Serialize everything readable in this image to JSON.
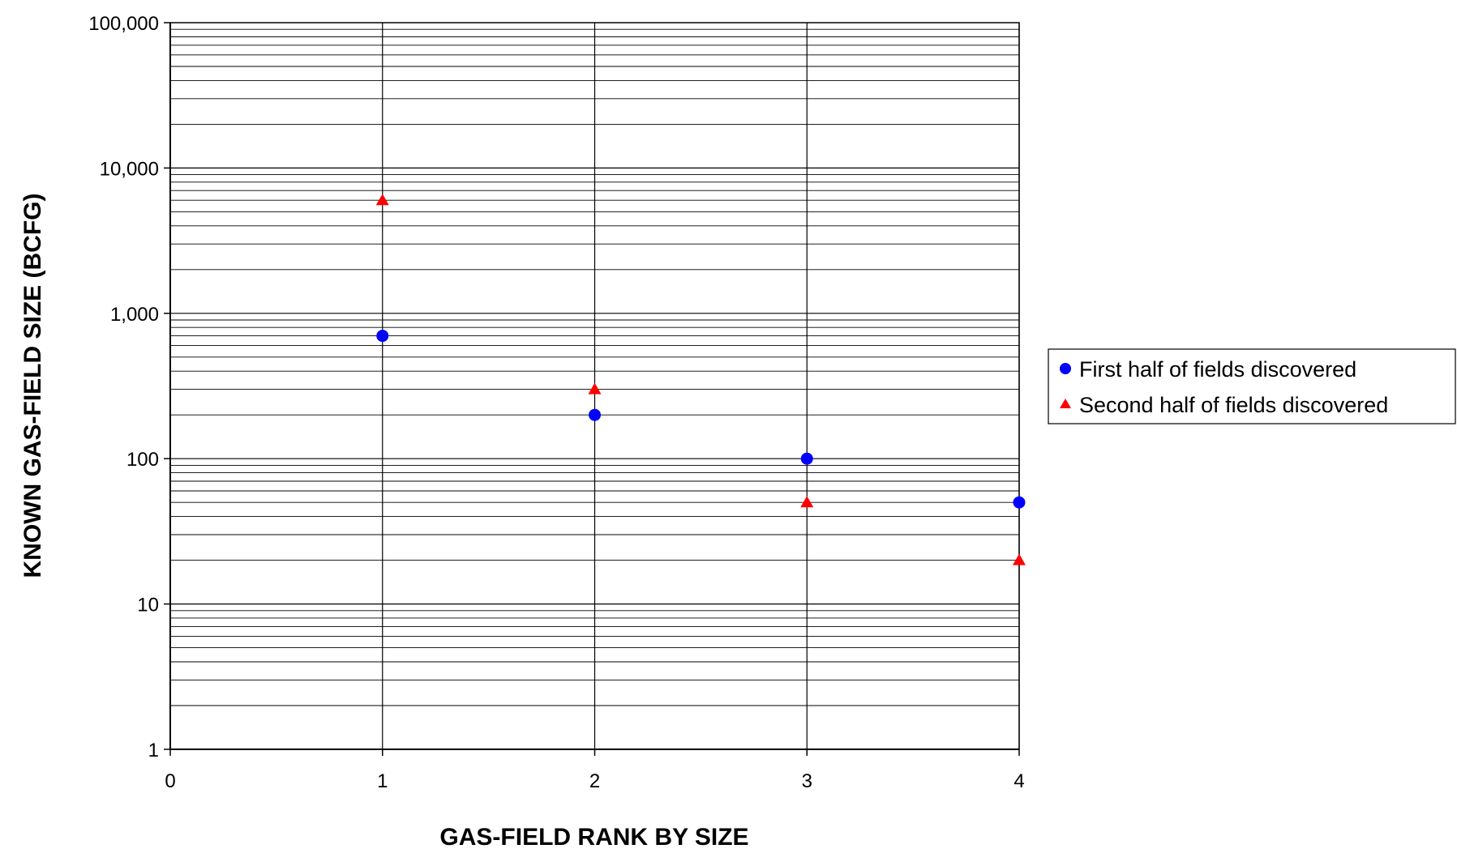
{
  "chart_data": {
    "type": "scatter",
    "title": "",
    "xlabel": "GAS-FIELD RANK BY SIZE",
    "ylabel": "KNOWN GAS-FIELD SIZE (BCFG)",
    "xlim": [
      0,
      4
    ],
    "ylim": [
      1,
      100000
    ],
    "yscale": "log",
    "grid": true,
    "legend_position": "right",
    "x_ticks": [
      0,
      1,
      2,
      3,
      4
    ],
    "x_tick_labels": [
      "0",
      "1",
      "2",
      "3",
      "4"
    ],
    "y_ticks": [
      1,
      10,
      100,
      1000,
      10000,
      100000
    ],
    "y_tick_labels": [
      "1",
      "10",
      "100",
      "1,000",
      "10,000",
      "100,000"
    ],
    "series": [
      {
        "name": "First half of fields discovered",
        "marker": "circle",
        "color": "#0000ff",
        "x": [
          1,
          2,
          3,
          4
        ],
        "y": [
          700,
          200,
          100,
          50
        ]
      },
      {
        "name": "Second half of fields discovered",
        "marker": "triangle",
        "color": "#ff0000",
        "x": [
          1,
          2,
          3,
          4
        ],
        "y": [
          6000,
          300,
          50,
          20
        ]
      }
    ]
  }
}
